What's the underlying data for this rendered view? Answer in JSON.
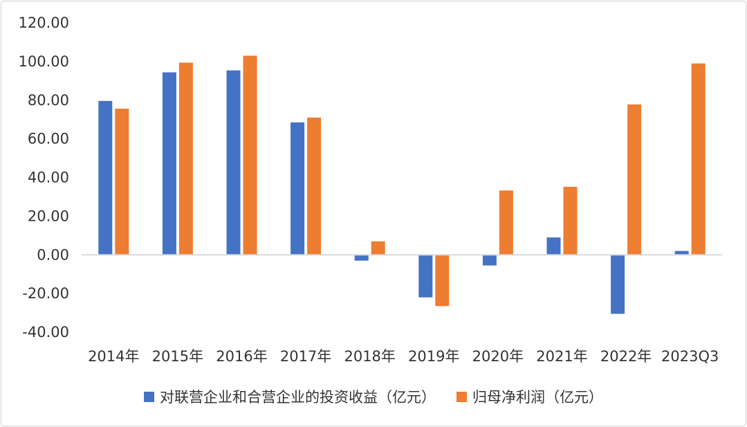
{
  "chart_data": {
    "type": "bar",
    "categories": [
      "2014年",
      "2015年",
      "2016年",
      "2017年",
      "2018年",
      "2019年",
      "2020年",
      "2021年",
      "2022年",
      "2023Q3"
    ],
    "ylim": [
      -40,
      120
    ],
    "yticks": [
      "120.00",
      "100.00",
      "80.00",
      "60.00",
      "40.00",
      "20.00",
      "0.00",
      "-20.00",
      "-40.00"
    ],
    "grid": false,
    "legend_position": "bottom",
    "series": [
      {
        "name": "对联营企业和合营企业的投资收益（亿元）",
        "color": "#4472c4",
        "values": [
          79.6,
          94.4,
          95.4,
          68.5,
          -3.0,
          -22.0,
          -5.5,
          9.0,
          -30.5,
          2.0
        ]
      },
      {
        "name": "归母净利润（亿元）",
        "color": "#ed7d31",
        "values": [
          75.6,
          99.4,
          103.0,
          71.0,
          7.0,
          -26.5,
          33.3,
          35.2,
          77.8,
          99.0
        ]
      }
    ]
  }
}
